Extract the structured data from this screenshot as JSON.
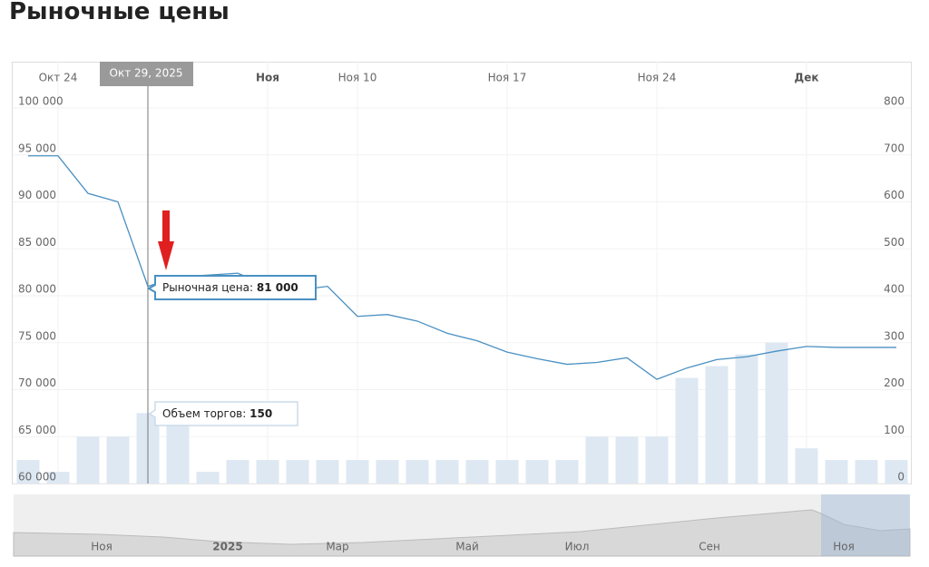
{
  "chart_data": {
    "type": "stock",
    "title": "Рыночные цены",
    "categories": [
      null,
      "Окт 24",
      null,
      null,
      null,
      null,
      null,
      null,
      "Ноя",
      null,
      null,
      "Ноя 10",
      null,
      null,
      null,
      null,
      "Ноя 17",
      null,
      null,
      null,
      null,
      "Ноя 24",
      null,
      null,
      null,
      null,
      "Дек",
      null,
      null,
      null
    ],
    "series": [
      {
        "color": "#4a90c2",
        "values": [
          94900,
          94900,
          90900,
          90000,
          81000,
          82000,
          82200,
          82400,
          81100,
          80600,
          81000,
          77800,
          78000,
          77300,
          76000,
          75200,
          74000,
          73300,
          72700,
          72900,
          73400,
          71100,
          72300,
          73200,
          73500,
          74100,
          74600,
          74500,
          74500,
          74500
        ]
      },
      {
        "color": "#dde8f3",
        "axis": "y2",
        "values": [
          50,
          25,
          100,
          100,
          150,
          150,
          25,
          50,
          50,
          50,
          50,
          50,
          50,
          50,
          50,
          50,
          50,
          50,
          50,
          100,
          100,
          100,
          225,
          250,
          275,
          300,
          75,
          50,
          50,
          50
        ]
      }
    ],
    "ylim": [
      60000,
      100000
    ],
    "yticks": [
      {
        "value": 60000,
        "label": "60 000"
      },
      {
        "value": 65000,
        "label": "65 000"
      },
      {
        "value": 70000,
        "label": "70 000"
      },
      {
        "value": 75000,
        "label": "75 000"
      },
      {
        "value": 80000,
        "label": "80 000"
      },
      {
        "value": 85000,
        "label": "85 000"
      },
      {
        "value": 90000,
        "label": "90 000"
      },
      {
        "value": 95000,
        "label": "95 000"
      },
      {
        "value": 100000,
        "label": "100 000"
      }
    ],
    "y2lim": [
      0,
      800
    ],
    "y2ticks": [
      0,
      100,
      200,
      300,
      400,
      500,
      600,
      700,
      800
    ],
    "grid": true,
    "tooltip": {
      "x": "Окт 29, 2025",
      "price_label": "Рыночная цена:",
      "price_value": "81 000",
      "volume_label": "Объем торгов:",
      "volume_value": "150"
    },
    "navigator_labels": [
      "Ноя",
      "2025",
      "Мар",
      "Май",
      "Июл",
      "Сен",
      "Ноя"
    ]
  }
}
